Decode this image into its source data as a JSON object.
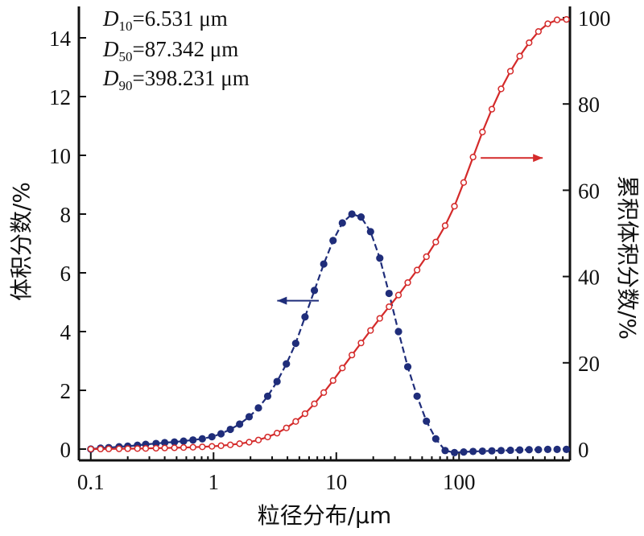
{
  "chart_data": {
    "type": "line",
    "x_scale": "log",
    "xlim": [
      0.08,
      800
    ],
    "ylim_left": [
      0,
      15
    ],
    "ylim_right": [
      0,
      100
    ],
    "xlabel": "粒径分布/μm",
    "ylabel_left": "体积分数/%",
    "ylabel_right": "累积体积分数/%",
    "x_ticks": [
      0.1,
      1,
      10,
      100
    ],
    "x_tick_labels": [
      "0.1",
      "1",
      "10",
      "100"
    ],
    "y_left_ticks": [
      0,
      2,
      4,
      6,
      8,
      10,
      12,
      14
    ],
    "y_left_tick_labels": [
      "0",
      "2",
      "4",
      "6",
      "8",
      "10",
      "12",
      "14"
    ],
    "y_right_ticks": [
      0,
      20,
      40,
      60,
      80,
      100
    ],
    "y_right_tick_labels": [
      "0",
      "20",
      "40",
      "60",
      "80",
      "100"
    ],
    "stats": [
      {
        "sym": "D",
        "sub": "10",
        "value": "=6.531 μm"
      },
      {
        "sym": "D",
        "sub": "50",
        "value": "=87.342 μm"
      },
      {
        "sym": "D",
        "sub": "90",
        "value": "=398.231 μm"
      }
    ],
    "series": [
      {
        "axis": "left",
        "color": "#1f2d7a",
        "marker": "filled-circle",
        "arrow_direction": "left",
        "x": [
          0.1,
          0.12,
          0.14,
          0.17,
          0.2,
          0.24,
          0.28,
          0.34,
          0.4,
          0.48,
          0.57,
          0.68,
          0.81,
          0.97,
          1.15,
          1.37,
          1.63,
          1.95,
          2.32,
          2.76,
          3.29,
          3.92,
          4.67,
          5.56,
          6.63,
          7.9,
          9.41,
          11.2,
          13.4,
          15.9,
          19,
          22.6,
          26.9,
          32.1,
          38.2,
          45.5,
          54.2,
          64.6,
          77,
          91.7,
          109,
          130,
          155,
          185,
          220,
          262,
          312,
          372,
          443,
          528,
          629,
          749
        ],
        "y": [
          0,
          0.03,
          0.05,
          0.08,
          0.1,
          0.13,
          0.16,
          0.19,
          0.22,
          0.24,
          0.27,
          0.31,
          0.35,
          0.42,
          0.52,
          0.67,
          0.85,
          1.1,
          1.4,
          1.8,
          2.3,
          2.9,
          3.6,
          4.5,
          5.4,
          6.3,
          7.1,
          7.7,
          8,
          7.9,
          7.4,
          6.5,
          5.3,
          4,
          2.8,
          1.8,
          0.95,
          0.35,
          -0.05,
          -0.12,
          -0.1,
          -0.08,
          -0.07,
          -0.06,
          -0.05,
          -0.04,
          -0.03,
          -0.02,
          -0.02,
          -0.01,
          -0.01,
          -0.01
        ]
      },
      {
        "axis": "right",
        "color": "#d42a2a",
        "marker": "open-circle",
        "arrow_direction": "right",
        "x": [
          0.1,
          0.12,
          0.14,
          0.17,
          0.2,
          0.24,
          0.28,
          0.34,
          0.4,
          0.48,
          0.57,
          0.68,
          0.81,
          0.97,
          1.15,
          1.37,
          1.63,
          1.95,
          2.32,
          2.76,
          3.29,
          3.92,
          4.67,
          5.56,
          6.63,
          7.9,
          9.41,
          11.2,
          13.4,
          15.9,
          19,
          22.6,
          26.9,
          32.1,
          38.2,
          45.5,
          54.2,
          64.6,
          77,
          91.7,
          109,
          130,
          155,
          185,
          220,
          262,
          312,
          372,
          443,
          528,
          629,
          749
        ],
        "y": [
          0,
          0.02,
          0.04,
          0.06,
          0.09,
          0.12,
          0.15,
          0.2,
          0.25,
          0.3,
          0.36,
          0.43,
          0.52,
          0.63,
          0.78,
          0.98,
          1.25,
          1.6,
          2.1,
          2.8,
          3.7,
          4.9,
          6.4,
          8.2,
          10.5,
          13.1,
          15.9,
          18.8,
          21.8,
          24.6,
          27.5,
          30.3,
          33,
          35.7,
          38.6,
          41.5,
          44.6,
          48,
          51.8,
          56.3,
          61.8,
          67.7,
          73.5,
          78.8,
          83.5,
          87.6,
          91.1,
          94.2,
          96.8,
          98.6,
          99.5,
          99.6
        ]
      }
    ]
  }
}
